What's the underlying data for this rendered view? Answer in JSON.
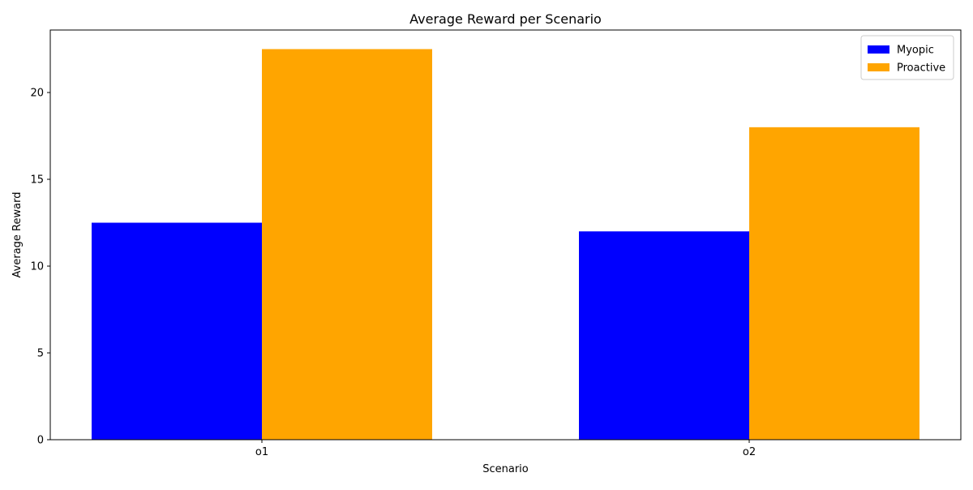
{
  "chart_data": {
    "type": "bar",
    "title": "Average Reward per Scenario",
    "xlabel": "Scenario",
    "ylabel": "Average Reward",
    "categories": [
      "o1",
      "o2"
    ],
    "series": [
      {
        "name": "Myopic",
        "values": [
          12.5,
          12.0
        ],
        "color": "#0000ff"
      },
      {
        "name": "Proactive",
        "values": [
          22.5,
          18.0
        ],
        "color": "#ffa500"
      }
    ],
    "ylim": [
      0,
      23.6
    ],
    "yticks": [
      0,
      5,
      10,
      15,
      20
    ],
    "legend_position": "top-right",
    "grid": false
  }
}
